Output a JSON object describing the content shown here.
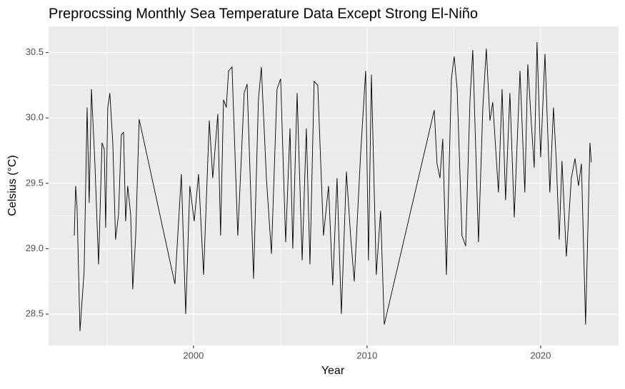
{
  "chart_data": {
    "type": "line",
    "title": "Preprocssing Monthly Sea Temperature Data Except Strong El-Niño",
    "x_label": "Year",
    "y_label": "Celsius (°C)",
    "x": [
      1993.13,
      1993.21,
      1993.29,
      1993.46,
      1993.7,
      1993.87,
      1993.99,
      1994.12,
      1994.32,
      1994.53,
      1994.73,
      1994.86,
      1994.94,
      1995.06,
      1995.18,
      1995.35,
      1995.51,
      1995.68,
      1995.84,
      1995.97,
      1996.09,
      1996.21,
      1996.38,
      1996.5,
      1996.67,
      1996.87,
      1998.93,
      1999.3,
      1999.55,
      1999.79,
      2000.04,
      2000.29,
      2000.58,
      2000.91,
      2001.11,
      2001.4,
      2001.56,
      2001.73,
      2001.89,
      2002.02,
      2002.22,
      2002.55,
      2002.72,
      2002.92,
      2003.09,
      2003.46,
      2003.74,
      2003.91,
      2004.2,
      2004.49,
      2004.81,
      2005.02,
      2005.31,
      2005.56,
      2005.72,
      2005.97,
      2006.26,
      2006.5,
      2006.71,
      2006.95,
      2007.16,
      2007.49,
      2007.78,
      2008.02,
      2008.27,
      2008.52,
      2008.81,
      2009.05,
      2009.26,
      2009.63,
      2009.92,
      2010.08,
      2010.25,
      2010.53,
      2010.78,
      2010.99,
      2013.87,
      2014.03,
      2014.2,
      2014.36,
      2014.57,
      2014.86,
      2015.02,
      2015.19,
      2015.47,
      2015.68,
      2015.93,
      2016.09,
      2016.42,
      2016.67,
      2016.87,
      2017.08,
      2017.24,
      2017.57,
      2017.78,
      2017.98,
      2018.23,
      2018.48,
      2018.81,
      2019.09,
      2019.26,
      2019.47,
      2019.63,
      2019.79,
      2020.0,
      2020.25,
      2020.53,
      2020.74,
      2020.91,
      2021.07,
      2021.23,
      2021.48,
      2021.77,
      2021.98,
      2022.18,
      2022.35,
      2022.59,
      2022.84,
      2022.92
    ],
    "values": [
      29.1,
      29.48,
      29.32,
      28.37,
      28.83,
      30.08,
      29.35,
      30.22,
      29.65,
      28.88,
      29.81,
      29.76,
      29.16,
      30.08,
      30.19,
      29.81,
      29.07,
      29.26,
      29.87,
      29.89,
      29.21,
      29.48,
      29.26,
      28.69,
      29.1,
      29.99,
      28.73,
      29.57,
      28.5,
      29.48,
      29.21,
      29.57,
      28.8,
      29.98,
      29.54,
      30.03,
      29.1,
      30.14,
      30.08,
      30.36,
      30.39,
      29.1,
      29.59,
      30.19,
      30.26,
      28.77,
      30.14,
      30.39,
      29.54,
      28.96,
      30.22,
      30.3,
      29.05,
      29.92,
      29.0,
      30.19,
      28.91,
      29.92,
      28.88,
      30.28,
      30.25,
      29.1,
      29.48,
      28.72,
      29.54,
      28.5,
      29.59,
      29.1,
      28.75,
      29.73,
      30.36,
      28.91,
      30.33,
      28.8,
      29.29,
      28.42,
      30.06,
      29.65,
      29.54,
      29.84,
      28.8,
      30.3,
      30.47,
      30.22,
      29.1,
      29.02,
      30.14,
      30.52,
      29.05,
      30.08,
      30.53,
      29.98,
      30.12,
      29.43,
      30.22,
      29.37,
      30.19,
      29.24,
      30.36,
      29.43,
      30.41,
      29.95,
      29.62,
      30.58,
      29.7,
      30.49,
      29.43,
      30.08,
      29.65,
      29.07,
      29.67,
      28.94,
      29.54,
      29.69,
      29.48,
      29.65,
      28.42,
      29.81,
      29.66
    ],
    "color": "#000000",
    "xlim": [
      1991.65,
      2024.49
    ],
    "xticks": [
      2000,
      2010,
      2020
    ],
    "ylim": [
      28.26,
      30.7
    ],
    "yticks": [
      28.5,
      {
        "value": 29,
        "label": "29.0"
      },
      29.5,
      {
        "value": 30,
        "label": "30.0"
      },
      30.5
    ],
    "grid": true
  }
}
